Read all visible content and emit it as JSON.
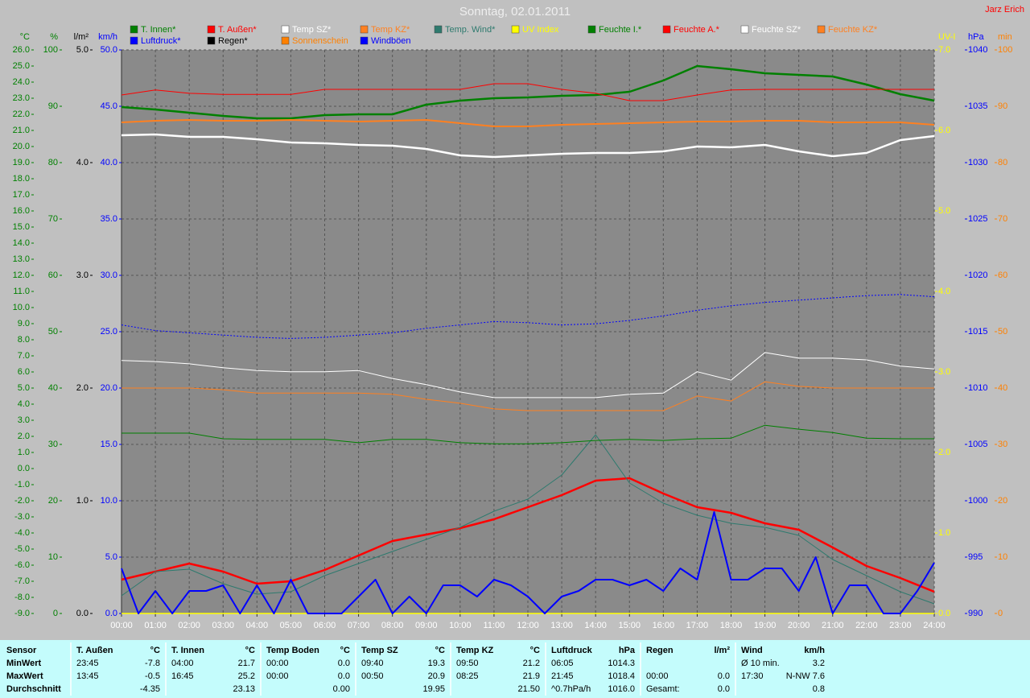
{
  "chart_data": {
    "type": "line",
    "title": "Sonntag, 02.01.2011",
    "author": "Jarz Erich",
    "grid": true,
    "x": [
      0,
      1,
      2,
      3,
      4,
      5,
      6,
      7,
      8,
      9,
      10,
      11,
      12,
      13,
      14,
      15,
      16,
      17,
      18,
      19,
      20,
      21,
      22,
      23,
      24
    ],
    "xlim": [
      0,
      24
    ],
    "xticks": [
      {
        "value": 0,
        "label": "00:00"
      },
      {
        "value": 1,
        "label": "01:00"
      },
      {
        "value": 2,
        "label": "02:00"
      },
      {
        "value": 3,
        "label": "03:00"
      },
      {
        "value": 4,
        "label": "04:00"
      },
      {
        "value": 5,
        "label": "05:00"
      },
      {
        "value": 6,
        "label": "06:00"
      },
      {
        "value": 7,
        "label": "07:00"
      },
      {
        "value": 8,
        "label": "08:00"
      },
      {
        "value": 9,
        "label": "09:00"
      },
      {
        "value": 10,
        "label": "10:00"
      },
      {
        "value": 11,
        "label": "11:00"
      },
      {
        "value": 12,
        "label": "12:00"
      },
      {
        "value": 13,
        "label": "13:00"
      },
      {
        "value": 14,
        "label": "14:00"
      },
      {
        "value": 15,
        "label": "15:00"
      },
      {
        "value": 16,
        "label": "16:00"
      },
      {
        "value": 17,
        "label": "17:00"
      },
      {
        "value": 18,
        "label": "18:00"
      },
      {
        "value": 19,
        "label": "19:00"
      },
      {
        "value": 20,
        "label": "20:00"
      },
      {
        "value": 21,
        "label": "21:00"
      },
      {
        "value": 22,
        "label": "22:00"
      },
      {
        "value": 23,
        "label": "23:00"
      },
      {
        "value": 24,
        "label": "24:00"
      }
    ],
    "axes": [
      {
        "label": "°C",
        "side": "left",
        "color": "#008000",
        "lim": [
          -9,
          26
        ],
        "ticks": [
          {
            "value": -9,
            "label": "-9.0"
          },
          {
            "value": -8,
            "label": "-8.0"
          },
          {
            "value": -7,
            "label": "-7.0"
          },
          {
            "value": -6,
            "label": "-6.0"
          },
          {
            "value": -5,
            "label": "-5.0"
          },
          {
            "value": -4,
            "label": "-4.0"
          },
          {
            "value": -3,
            "label": "-3.0"
          },
          {
            "value": -2,
            "label": "-2.0"
          },
          {
            "value": -1,
            "label": "-1.0"
          },
          {
            "value": 0,
            "label": "0.0"
          },
          {
            "value": 1,
            "label": "1.0"
          },
          {
            "value": 2,
            "label": "2.0"
          },
          {
            "value": 3,
            "label": "3.0"
          },
          {
            "value": 4,
            "label": "4.0"
          },
          {
            "value": 5,
            "label": "5.0"
          },
          {
            "value": 6,
            "label": "6.0"
          },
          {
            "value": 7,
            "label": "7.0"
          },
          {
            "value": 8,
            "label": "8.0"
          },
          {
            "value": 9,
            "label": "9.0"
          },
          {
            "value": 10,
            "label": "10.0"
          },
          {
            "value": 11,
            "label": "11.0"
          },
          {
            "value": 12,
            "label": "12.0"
          },
          {
            "value": 13,
            "label": "13.0"
          },
          {
            "value": 14,
            "label": "14.0"
          },
          {
            "value": 15,
            "label": "15.0"
          },
          {
            "value": 16,
            "label": "16.0"
          },
          {
            "value": 17,
            "label": "17.0"
          },
          {
            "value": 18,
            "label": "18.0"
          },
          {
            "value": 19,
            "label": "19.0"
          },
          {
            "value": 20,
            "label": "20.0"
          },
          {
            "value": 21,
            "label": "21.0"
          },
          {
            "value": 22,
            "label": "22.0"
          },
          {
            "value": 23,
            "label": "23.0"
          },
          {
            "value": 24,
            "label": "24.0"
          },
          {
            "value": 25,
            "label": "25.0"
          },
          {
            "value": 26,
            "label": "26.0"
          }
        ]
      },
      {
        "label": "%",
        "side": "left",
        "color": "#008000",
        "lim": [
          0,
          100
        ],
        "grid": true,
        "ticks": [
          0,
          10,
          20,
          30,
          40,
          50,
          60,
          70,
          80,
          90,
          100
        ]
      },
      {
        "label": "l/m²",
        "side": "left",
        "color": "#000000",
        "lim": [
          0,
          5
        ],
        "ticks": [
          {
            "value": 0,
            "label": "0.0"
          },
          {
            "value": 1,
            "label": "1.0"
          },
          {
            "value": 2,
            "label": "2.0"
          },
          {
            "value": 3,
            "label": "3.0"
          },
          {
            "value": 4,
            "label": "4.0"
          },
          {
            "value": 5,
            "label": "5.0"
          }
        ]
      },
      {
        "label": "km/h",
        "side": "left",
        "color": "#0000ff",
        "lim": [
          0,
          50
        ],
        "ticks": [
          {
            "value": 0,
            "label": "0.0"
          },
          {
            "value": 5,
            "label": "5.0"
          },
          {
            "value": 10,
            "label": "10.0"
          },
          {
            "value": 15,
            "label": "15.0"
          },
          {
            "value": 20,
            "label": "20.0"
          },
          {
            "value": 25,
            "label": "25.0"
          },
          {
            "value": 30,
            "label": "30.0"
          },
          {
            "value": 35,
            "label": "35.0"
          },
          {
            "value": 40,
            "label": "40.0"
          },
          {
            "value": 45,
            "label": "45.0"
          },
          {
            "value": 50,
            "label": "50.0"
          }
        ]
      },
      {
        "label": "UV-I",
        "side": "right",
        "color": "#ffff00",
        "lim": [
          0,
          7
        ],
        "ticks": [
          {
            "value": 0,
            "label": "0.0"
          },
          {
            "value": 1,
            "label": "1.0"
          },
          {
            "value": 2,
            "label": "2.0"
          },
          {
            "value": 3,
            "label": "3.0"
          },
          {
            "value": 4,
            "label": "4.0"
          },
          {
            "value": 5,
            "label": "5.0"
          },
          {
            "value": 6,
            "label": "6.0"
          },
          {
            "value": 7,
            "label": "7.0"
          }
        ]
      },
      {
        "label": "hPa",
        "side": "right",
        "color": "#0000ff",
        "lim": [
          990,
          1040
        ],
        "ticks": [
          990,
          995,
          1000,
          1005,
          1010,
          1015,
          1020,
          1025,
          1030,
          1035,
          1040
        ]
      },
      {
        "label": "min",
        "side": "right",
        "color": "#ff8000",
        "lim": [
          0,
          100
        ],
        "ticks": [
          0,
          10,
          20,
          30,
          40,
          50,
          60,
          70,
          80,
          90,
          100
        ]
      }
    ],
    "series": [
      {
        "name": "T. Innen*",
        "color": "#008000",
        "axis": "°C",
        "width": 2.5,
        "values": [
          22.45,
          22.3,
          22.1,
          21.9,
          21.75,
          21.75,
          21.95,
          22.0,
          22.0,
          22.6,
          22.85,
          23.0,
          23.05,
          23.15,
          23.2,
          23.4,
          24.1,
          25.0,
          24.8,
          24.55,
          24.45,
          24.35,
          23.85,
          23.25,
          22.85
        ]
      },
      {
        "name": "T. Außen*",
        "color": "#ff0000",
        "axis": "°C",
        "width": 2.5,
        "values": [
          -6.9,
          -6.4,
          -5.9,
          -6.4,
          -7.15,
          -7.0,
          -6.3,
          -5.4,
          -4.5,
          -4.1,
          -3.7,
          -3.15,
          -2.4,
          -1.65,
          -0.75,
          -0.6,
          -1.55,
          -2.4,
          -2.75,
          -3.4,
          -3.8,
          -4.9,
          -6.05,
          -6.8,
          -7.65
        ]
      },
      {
        "name": "Temp SZ*",
        "color": "#ffffff",
        "axis": "°C",
        "width": 2.5,
        "values": [
          20.7,
          20.75,
          20.6,
          20.6,
          20.45,
          20.25,
          20.2,
          20.1,
          20.05,
          19.85,
          19.45,
          19.35,
          19.45,
          19.55,
          19.6,
          19.6,
          19.7,
          20.0,
          19.95,
          20.1,
          19.7,
          19.4,
          19.6,
          20.4,
          20.65
        ]
      },
      {
        "name": "Temp KZ*",
        "color": "#ff8020",
        "axis": "°C",
        "width": 2,
        "values": [
          21.5,
          21.6,
          21.65,
          21.6,
          21.6,
          21.65,
          21.6,
          21.55,
          21.6,
          21.65,
          21.45,
          21.25,
          21.25,
          21.35,
          21.4,
          21.45,
          21.5,
          21.55,
          21.55,
          21.6,
          21.6,
          21.5,
          21.5,
          21.5,
          21.35
        ]
      },
      {
        "name": "Temp. Wind*",
        "color": "#2e7a6e",
        "axis": "°C",
        "width": 1,
        "values": [
          -7.9,
          -6.4,
          -6.25,
          -7.15,
          -7.8,
          -7.65,
          -6.65,
          -5.9,
          -5.15,
          -4.4,
          -3.65,
          -2.65,
          -1.9,
          -0.4,
          2.1,
          -0.9,
          -2.15,
          -2.9,
          -3.4,
          -3.65,
          -4.15,
          -5.65,
          -6.65,
          -7.65,
          -8.4
        ]
      },
      {
        "name": "UV Index",
        "color": "#ffff00",
        "axis": "UV-I",
        "width": 1.5,
        "x": [
          0,
          24
        ],
        "values": [
          0,
          0
        ]
      },
      {
        "name": "Feuchte I.*",
        "color": "#008000",
        "axis": "%",
        "width": 1,
        "values": [
          32.0,
          32.0,
          32.0,
          31.0,
          30.9,
          30.9,
          30.9,
          30.3,
          30.9,
          30.9,
          30.3,
          30.1,
          30.1,
          30.3,
          30.7,
          30.9,
          30.7,
          31.0,
          31.1,
          33.4,
          32.7,
          32.1,
          31.1,
          31.0,
          31.0
        ]
      },
      {
        "name": "Feuchte A.*",
        "color": "#ff0000",
        "axis": "%",
        "width": 1,
        "values": [
          92.0,
          92.9,
          92.3,
          92.1,
          92.1,
          92.1,
          93.0,
          93.0,
          93.0,
          93.0,
          93.0,
          94.0,
          94.0,
          93.0,
          92.3,
          91.0,
          91.0,
          92.0,
          92.9,
          93.0,
          93.0,
          93.0,
          93.0,
          93.0,
          93.0
        ]
      },
      {
        "name": "Feuchte SZ*",
        "color": "#ffffff",
        "axis": "%",
        "width": 1,
        "values": [
          44.9,
          44.7,
          44.3,
          43.6,
          43.1,
          42.9,
          42.9,
          43.1,
          41.7,
          40.6,
          39.3,
          38.3,
          38.3,
          38.3,
          38.3,
          38.9,
          39.1,
          42.9,
          41.4,
          46.3,
          45.3,
          45.3,
          45.0,
          43.9,
          43.4
        ]
      },
      {
        "name": "Feuchte KZ*",
        "color": "#ff8020",
        "axis": "%",
        "width": 1,
        "values": [
          40.0,
          40.0,
          40.0,
          39.7,
          39.1,
          39.1,
          39.1,
          39.1,
          38.9,
          38.0,
          37.3,
          36.3,
          36.0,
          36.0,
          36.0,
          36.0,
          36.0,
          38.6,
          37.7,
          41.1,
          40.3,
          40.0,
          40.0,
          40.0,
          40.0
        ]
      },
      {
        "name": "Luftdruck*",
        "color": "#0000ff",
        "axis": "hPa",
        "width": 1,
        "dashed": true,
        "values": [
          1015.6,
          1015.1,
          1014.9,
          1014.7,
          1014.5,
          1014.4,
          1014.5,
          1014.7,
          1014.9,
          1015.3,
          1015.6,
          1015.9,
          1015.8,
          1015.6,
          1015.7,
          1016.0,
          1016.4,
          1016.9,
          1017.3,
          1017.6,
          1017.8,
          1018.0,
          1018.2,
          1018.3,
          1018.1
        ]
      },
      {
        "name": "Regen*",
        "color": "#000000"
      },
      {
        "name": "Sonnenschein",
        "color": "#ff8000"
      },
      {
        "name": "Windböen",
        "color": "#0000ff",
        "axis": "km/h",
        "width": 2,
        "x": [
          0,
          0.5,
          1,
          1.5,
          2,
          2.5,
          3,
          3.5,
          4,
          4.5,
          5,
          5.5,
          6,
          6.5,
          7,
          7.5,
          8,
          8.5,
          9,
          9.5,
          10,
          10.5,
          11,
          11.5,
          12,
          12.5,
          13,
          13.5,
          14,
          14.5,
          15,
          15.5,
          16,
          16.5,
          17,
          17.5,
          18,
          18.5,
          19,
          19.5,
          20,
          20.5,
          21,
          21.5,
          22,
          22.5,
          23,
          23.5,
          24
        ],
        "values": [
          4,
          0,
          2,
          0,
          2,
          2,
          2.5,
          0,
          2.5,
          0,
          3,
          0,
          0,
          0,
          1.5,
          3,
          0,
          1.5,
          0,
          2.5,
          2.5,
          1.5,
          3,
          2.5,
          1.5,
          0,
          1.5,
          2,
          3,
          3,
          2.5,
          3,
          2,
          4,
          3,
          9,
          3,
          3,
          4,
          4,
          2,
          5,
          0,
          2.5,
          2.5,
          0,
          0,
          2,
          4.5
        ]
      }
    ]
  },
  "stats": {
    "sensor_column": [
      "Sensor",
      "MinWert",
      "MaxWert",
      "Durchschnitt"
    ],
    "groups": [
      {
        "name": "T. Außen",
        "unit": "°C",
        "rows": [
          [
            "23:45",
            "-7.8"
          ],
          [
            "13:45",
            "-0.5"
          ],
          [
            "-4.35"
          ]
        ]
      },
      {
        "name": "T. Innen",
        "unit": "°C",
        "rows": [
          [
            "04:00",
            "21.7"
          ],
          [
            "16:45",
            "25.2"
          ],
          [
            "23.13"
          ]
        ]
      },
      {
        "name": "Temp Boden",
        "unit": "°C",
        "rows": [
          [
            "00:00",
            "0.0"
          ],
          [
            "00:00",
            "0.0"
          ],
          [
            "0.00"
          ]
        ]
      },
      {
        "name": "Temp SZ",
        "unit": "°C",
        "rows": [
          [
            "09:40",
            "19.3"
          ],
          [
            "00:50",
            "20.9"
          ],
          [
            "19.95"
          ]
        ]
      },
      {
        "name": "Temp KZ",
        "unit": "°C",
        "rows": [
          [
            "09:50",
            "21.2"
          ],
          [
            "08:25",
            "21.9"
          ],
          [
            "21.50"
          ]
        ]
      },
      {
        "name": "Luftdruck",
        "unit": "hPa",
        "rows": [
          [
            "06:05",
            "1014.3"
          ],
          [
            "21:45",
            "1018.4"
          ],
          [
            "^0.7hPa/h",
            "1016.0"
          ]
        ]
      },
      {
        "name": "Regen",
        "unit": "l/m²",
        "rows": [
          null,
          [
            "00:00",
            "0.0"
          ],
          [
            "Gesamt:",
            "0.0"
          ]
        ]
      },
      {
        "name": "Wind",
        "unit": "km/h",
        "rows": [
          [
            "Ø 10 min.",
            "3.2"
          ],
          [
            "17:30",
            "N-NW 7.6"
          ],
          [
            "0.8"
          ]
        ]
      }
    ]
  }
}
